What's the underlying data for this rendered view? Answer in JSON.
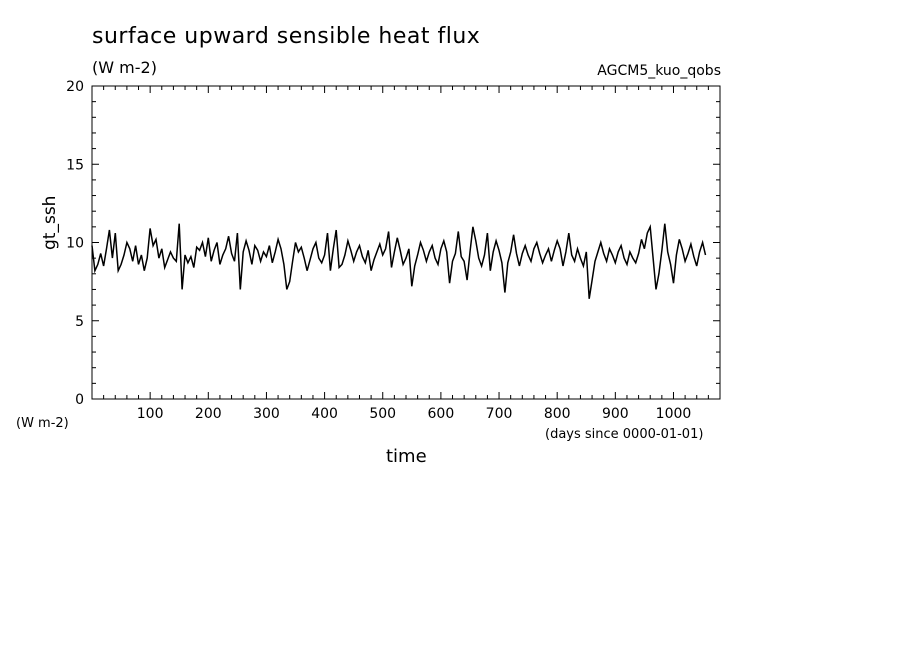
{
  "chart_data": {
    "type": "line",
    "title": "surface upward sensible heat flux",
    "title_units": "(W m-2)",
    "run_label": "AGCM5_kuo_qobs",
    "xlabel": "time",
    "xunits": "(days since 0000-01-01)",
    "ylabel": "gt_ssh",
    "yunits": "(W m-2)",
    "xlim": [
      0,
      1080
    ],
    "ylim": [
      0,
      20
    ],
    "xticks": [
      100,
      200,
      300,
      400,
      500,
      600,
      700,
      800,
      900,
      1000
    ],
    "yticks": [
      0,
      5,
      10,
      15,
      20
    ],
    "series": [
      {
        "color": "#000000",
        "x_start": 0,
        "x_step": 5,
        "values": [
          9.8,
          8.2,
          8.6,
          9.3,
          8.5,
          9.6,
          10.8,
          9.0,
          10.6,
          8.2,
          8.6,
          9.2,
          10.0,
          9.6,
          8.8,
          9.8,
          8.6,
          9.2,
          8.2,
          9.0,
          10.9,
          9.8,
          10.2,
          9.0,
          9.6,
          8.4,
          8.9,
          9.4,
          9.0,
          8.8,
          11.2,
          7.0,
          9.2,
          8.7,
          9.1,
          8.4,
          9.7,
          9.5,
          10.0,
          9.1,
          10.3,
          8.8,
          9.5,
          10.0,
          8.6,
          9.2,
          9.6,
          10.4,
          9.3,
          8.8,
          10.6,
          7.0,
          9.4,
          10.1,
          9.5,
          8.6,
          9.8,
          9.5,
          8.8,
          9.4,
          9.1,
          9.8,
          8.7,
          9.4,
          10.2,
          9.6,
          8.6,
          7.0,
          7.5,
          8.8,
          10.0,
          9.4,
          9.7,
          9.0,
          8.2,
          8.9,
          9.6,
          10.0,
          9.0,
          8.7,
          9.2,
          10.6,
          8.2,
          9.6,
          10.8,
          8.4,
          8.6,
          9.2,
          10.1,
          9.5,
          8.8,
          9.4,
          9.8,
          9.1,
          8.7,
          9.5,
          8.2,
          8.9,
          9.4,
          9.9,
          9.2,
          9.6,
          10.7,
          8.4,
          9.4,
          10.3,
          9.5,
          8.6,
          9.0,
          9.6,
          7.2,
          8.5,
          9.2,
          10.0,
          9.5,
          8.8,
          9.4,
          9.8,
          9.0,
          8.6,
          9.6,
          10.1,
          9.4,
          7.4,
          8.8,
          9.3,
          10.7,
          9.1,
          8.8,
          7.6,
          9.4,
          11.0,
          10.1,
          9.0,
          8.5,
          9.2,
          10.6,
          8.2,
          9.4,
          10.1,
          9.5,
          8.7,
          6.8,
          8.7,
          9.4,
          10.5,
          9.3,
          8.5,
          9.3,
          9.8,
          9.2,
          8.8,
          9.6,
          10.0,
          9.3,
          8.7,
          9.2,
          9.6,
          8.8,
          9.5,
          10.1,
          9.6,
          8.5,
          9.4,
          10.6,
          9.2,
          8.8,
          9.6,
          9.0,
          8.5,
          9.4,
          6.4,
          7.6,
          8.8,
          9.4,
          10.0,
          9.3,
          8.8,
          9.6,
          9.2,
          8.7,
          9.4,
          9.8,
          9.0,
          8.6,
          9.4,
          9.0,
          8.7,
          9.3,
          10.2,
          9.6,
          10.6,
          11.0,
          9.0,
          7.0,
          8.0,
          9.5,
          11.2,
          9.4,
          8.6,
          7.4,
          9.2,
          10.2,
          9.6,
          8.8,
          9.3,
          9.9,
          9.1,
          8.5,
          9.4,
          10.0,
          9.2
        ]
      }
    ]
  }
}
